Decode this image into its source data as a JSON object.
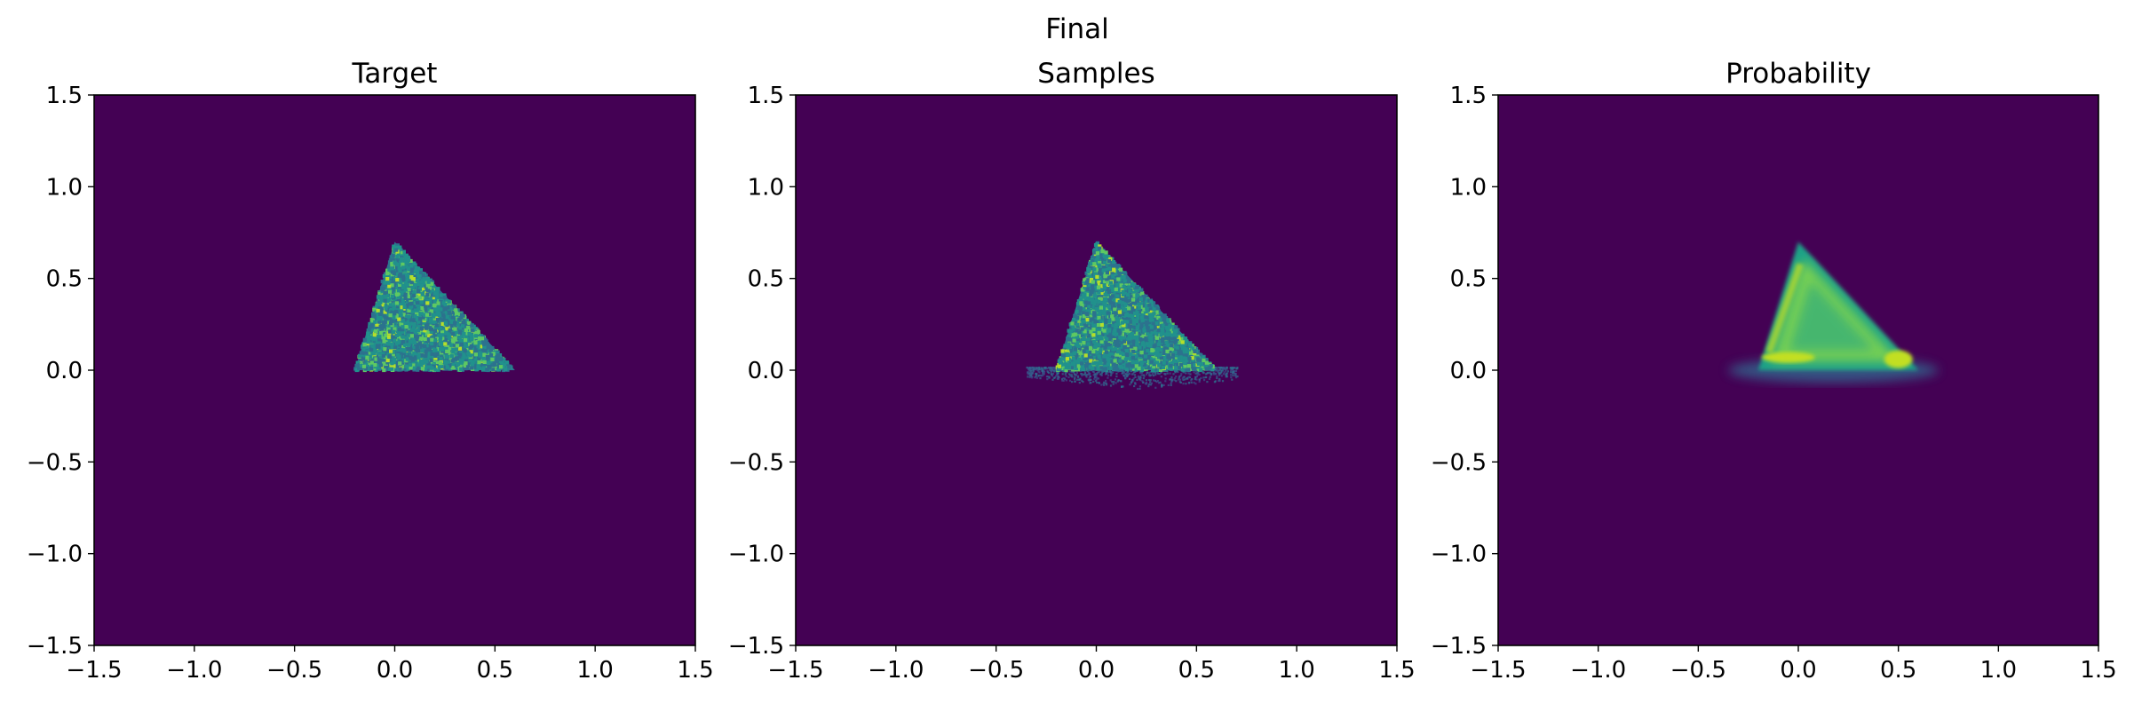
{
  "suptitle": "Final",
  "chart_data": [
    {
      "type": "heatmap",
      "title": "Target",
      "xlim": [
        -1.5,
        1.5
      ],
      "ylim": [
        -1.5,
        1.5
      ],
      "xticks": [
        "−1.5",
        "−1.0",
        "−0.5",
        "0.0",
        "0.5",
        "1.0",
        "1.5"
      ],
      "yticks": [
        "1.5",
        "1.0",
        "0.5",
        "0.0",
        "−0.5",
        "−1.0",
        "−1.5"
      ],
      "colormap": "viridis",
      "background": "#440154",
      "region": {
        "shape": "triangle",
        "vertices": [
          [
            -0.2,
            0.0
          ],
          [
            0.0,
            0.7
          ],
          [
            0.6,
            0.0
          ]
        ],
        "fill": "speckled"
      },
      "colors": [
        "#21918c",
        "#2c728e",
        "#5ec962",
        "#b5de2b"
      ]
    },
    {
      "type": "heatmap",
      "title": "Samples",
      "xlim": [
        -1.5,
        1.5
      ],
      "ylim": [
        -1.5,
        1.5
      ],
      "xticks": [
        "−1.5",
        "−1.0",
        "−0.5",
        "0.0",
        "0.5",
        "1.0",
        "1.5"
      ],
      "yticks": [
        "1.5",
        "1.0",
        "0.5",
        "0.0",
        "−0.5",
        "−1.0",
        "−1.5"
      ],
      "colormap": "viridis",
      "background": "#440154",
      "region": {
        "shape": "triangle",
        "vertices": [
          [
            -0.2,
            0.0
          ],
          [
            0.0,
            0.7
          ],
          [
            0.6,
            0.0
          ]
        ],
        "fill": "speckled",
        "spill_below": 0.12,
        "spill_x_range": [
          -0.35,
          0.7
        ]
      },
      "colors": [
        "#21918c",
        "#2c728e",
        "#5ec962",
        "#b5de2b"
      ]
    },
    {
      "type": "heatmap",
      "title": "Probability",
      "xlim": [
        -1.5,
        1.5
      ],
      "ylim": [
        -1.5,
        1.5
      ],
      "xticks": [
        "−1.5",
        "−1.0",
        "−0.5",
        "0.0",
        "0.5",
        "1.0",
        "1.5"
      ],
      "yticks": [
        "1.5",
        "1.0",
        "0.5",
        "0.0",
        "−0.5",
        "−1.0",
        "−1.5"
      ],
      "colormap": "viridis",
      "background": "#440154",
      "region": {
        "shape": "triangle",
        "vertices": [
          [
            -0.2,
            0.0
          ],
          [
            0.0,
            0.7
          ],
          [
            0.6,
            0.0
          ]
        ],
        "fill": "smooth",
        "spill_below": 0.1,
        "spill_x_range": [
          -0.35,
          0.7
        ]
      },
      "colors": [
        "#1fa187",
        "#7ad151",
        "#c2df23",
        "#b5de2b"
      ]
    }
  ]
}
